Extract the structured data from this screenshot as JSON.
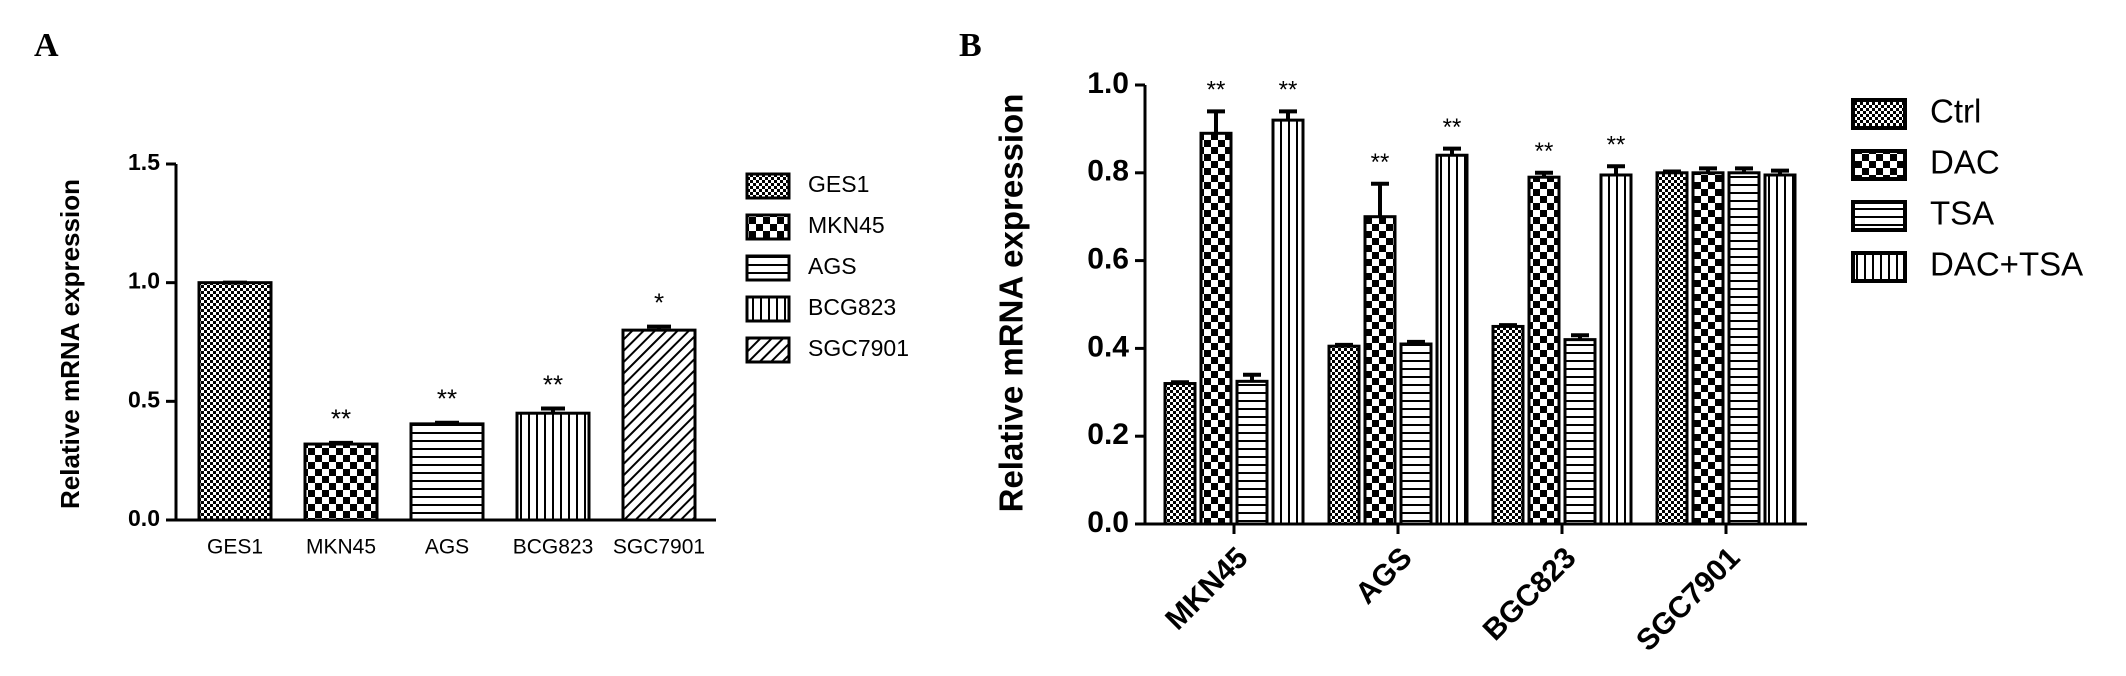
{
  "chart_data": [
    {
      "type": "bar",
      "panel_label": "A",
      "y_label": "Relative mRNA expression",
      "categories": [
        "GES1",
        "MKN45",
        "AGS",
        "BCG823",
        "SGC7901"
      ],
      "values": [
        1.0,
        0.32,
        0.405,
        0.45,
        0.8
      ],
      "errors": [
        0,
        0.005,
        0.005,
        0.02,
        0.015
      ],
      "annotations": [
        null,
        "**",
        "**",
        "**",
        "*"
      ],
      "patterns": [
        "fine-check",
        "coarse-check",
        "hlines",
        "vlines",
        "diag"
      ],
      "ylim": [
        0,
        1.5
      ],
      "yticks": [
        {
          "value": 0,
          "label": "0.0"
        },
        0.5,
        {
          "value": 1,
          "label": "1.0"
        },
        1.5
      ]
    },
    {
      "type": "grouped-bar",
      "panel_label": "B",
      "y_label": "Relative mRNA expression",
      "categories": [
        "MKN45",
        "AGS",
        "BGC823",
        "SGC7901"
      ],
      "series": [
        {
          "name": "Ctrl",
          "pattern": "fine-check",
          "values": [
            0.32,
            0.405,
            0.45,
            0.8
          ],
          "errors": [
            0.003,
            0.003,
            0.003,
            0.003
          ],
          "annotations": [
            null,
            null,
            null,
            null
          ]
        },
        {
          "name": "DAC",
          "pattern": "coarse-check",
          "values": [
            0.89,
            0.7,
            0.79,
            0.8
          ],
          "errors": [
            0.05,
            0.075,
            0.01,
            0.01
          ],
          "annotations": [
            "**",
            "**",
            "**",
            null
          ]
        },
        {
          "name": "TSA",
          "pattern": "hlines",
          "values": [
            0.325,
            0.41,
            0.42,
            0.8
          ],
          "errors": [
            0.015,
            0.005,
            0.01,
            0.01
          ],
          "annotations": [
            null,
            null,
            null,
            null
          ]
        },
        {
          "name": "DAC+TSA",
          "pattern": "vlines",
          "values": [
            0.92,
            0.84,
            0.795,
            0.795
          ],
          "errors": [
            0.02,
            0.015,
            0.02,
            0.01
          ],
          "annotations": [
            "**",
            "**",
            "**",
            null
          ]
        }
      ],
      "ylim": [
        0,
        1.0
      ],
      "yticks": [
        {
          "value": 0,
          "label": "0.0"
        },
        0.2,
        0.4,
        0.6,
        0.8,
        {
          "value": 1,
          "label": "1.0"
        }
      ]
    }
  ]
}
